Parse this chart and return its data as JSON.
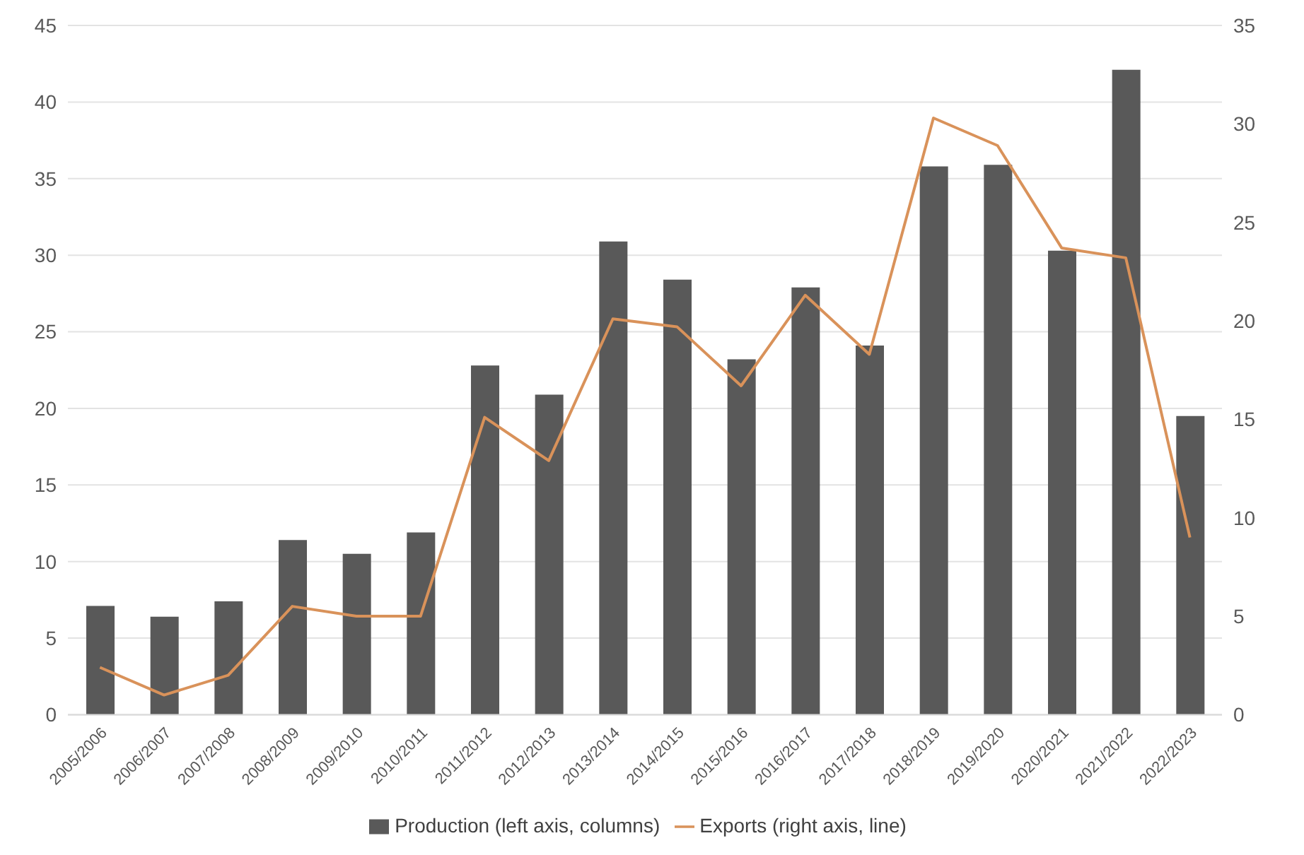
{
  "chart_data": {
    "type": "bar",
    "categories": [
      "2005/2006",
      "2006/2007",
      "2007/2008",
      "2008/2009",
      "2009/2010",
      "2010/2011",
      "2011/2012",
      "2012/2013",
      "2013/2014",
      "2014/2015",
      "2015/2016",
      "2016/2017",
      "2017/2018",
      "2018/2019",
      "2019/2020",
      "2020/2021",
      "2021/2022",
      "2022/2023"
    ],
    "series": [
      {
        "name": "Production (left axis, columns)",
        "color": "#595959",
        "values": [
          7.1,
          6.4,
          7.4,
          11.4,
          10.5,
          11.9,
          22.8,
          20.9,
          30.9,
          28.4,
          23.2,
          27.9,
          24.1,
          35.8,
          35.9,
          30.3,
          42.1,
          19.5
        ]
      },
      {
        "name": "Exports (right axis, line)",
        "type": "line",
        "axis": "y2",
        "color": "#d9925a",
        "values": [
          2.4,
          1.0,
          2.0,
          5.5,
          5.0,
          5.0,
          15.1,
          12.9,
          20.1,
          19.7,
          16.7,
          21.3,
          18.3,
          30.3,
          28.9,
          23.7,
          23.2,
          9.0
        ]
      }
    ],
    "ylim": [
      0,
      45
    ],
    "yticks": [
      0,
      5,
      10,
      15,
      20,
      25,
      30,
      35,
      40,
      45
    ],
    "y2lim": [
      0,
      35
    ],
    "y2ticks": [
      0,
      5,
      10,
      15,
      20,
      25,
      30,
      35
    ],
    "grid": "y",
    "legend": "bottom",
    "marker": "none",
    "line_style": "solid"
  }
}
